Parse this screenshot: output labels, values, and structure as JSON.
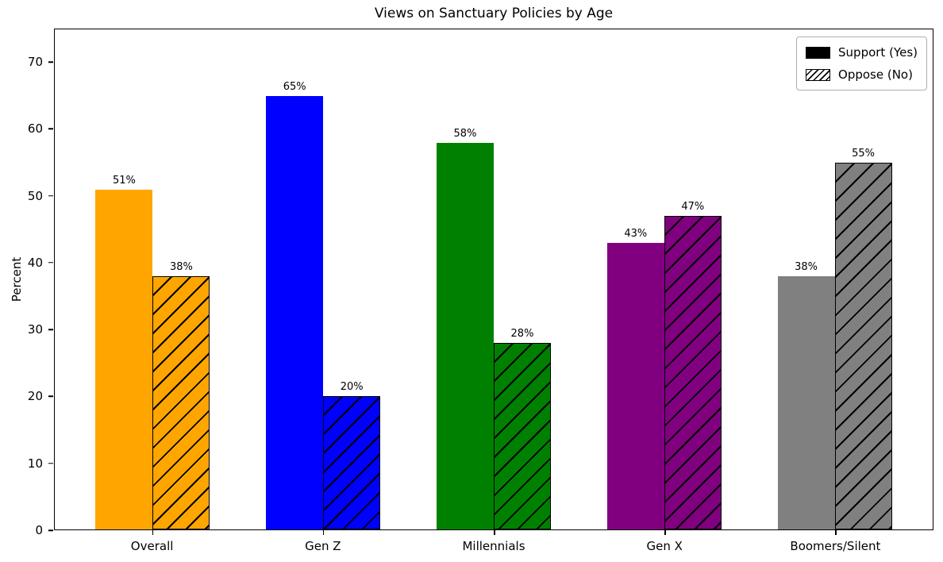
{
  "chart_data": {
    "type": "bar",
    "title": "Views on Sanctuary Policies by Age",
    "xlabel": "",
    "ylabel": "Percent",
    "categories": [
      "Overall",
      "Gen Z",
      "Millennials",
      "Gen X",
      "Boomers/Silent"
    ],
    "series": [
      {
        "name": "Support (Yes)",
        "values": [
          51,
          65,
          58,
          43,
          38
        ],
        "hatch": false
      },
      {
        "name": "Oppose (No)",
        "values": [
          38,
          20,
          28,
          47,
          55
        ],
        "hatch": true
      }
    ],
    "bar_colors": [
      "#ffa500",
      "#0000ff",
      "#008000",
      "#800080",
      "#808080"
    ],
    "hatch_color": "#000000",
    "ylim": [
      0,
      75
    ],
    "yticks": [
      0,
      10,
      20,
      30,
      40,
      50,
      60,
      70
    ],
    "value_suffix": "%",
    "grid": false,
    "legend": {
      "position": "upper right",
      "entries": [
        "Support (Yes)",
        "Oppose (No)"
      ]
    }
  }
}
